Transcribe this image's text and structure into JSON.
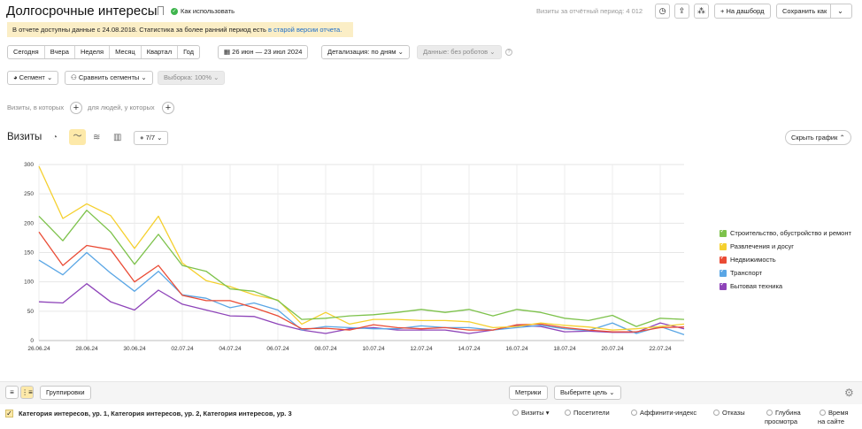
{
  "header": {
    "title": "Долгосрочные интересы",
    "howto_label": "Как использовать",
    "visits_period": "Визиты за отчётный период: 4 012",
    "to_dashboard": "На дашборд",
    "save_as": "Сохранить как"
  },
  "notice": {
    "text": "В отчете доступны данные с 24.08.2018. Статистика за более ранний период есть ",
    "link": "в старой версии отчета."
  },
  "periods": [
    "Сегодня",
    "Вчера",
    "Неделя",
    "Месяц",
    "Квартал",
    "Год"
  ],
  "date_range": "26 июн — 23 июл 2024",
  "detail_label": "Детализация: по дням",
  "data_label": "Данные: без роботов",
  "segment_label": "Сегмент",
  "compare_label": "Сравнить сегменты",
  "sample_label": "Выборка: 100%",
  "filter": {
    "visits_which": "Визиты, в которых",
    "people_which": "для людей, у которых"
  },
  "chart_header": {
    "title": "Визиты",
    "series_count": "7/7",
    "hide_chart": "Скрыть график"
  },
  "colors": {
    "construction": "#7dc24b",
    "entertainment": "#f5d02e",
    "realty": "#ea4b35",
    "transport": "#5aa6e5",
    "appliances": "#8e44b9"
  },
  "chart_data": {
    "type": "line",
    "x_tick_labels": [
      "26.06.24",
      "28.06.24",
      "30.06.24",
      "02.07.24",
      "04.07.24",
      "06.07.24",
      "08.07.24",
      "10.07.24",
      "12.07.24",
      "14.07.24",
      "16.07.24",
      "18.07.24",
      "20.07.24",
      "22.07.24"
    ],
    "weekend_ticks": [
      "30.06.24",
      "06.07.24",
      "14.07.24",
      "20.07.24"
    ],
    "x": [
      "26.06.24",
      "27.06.24",
      "28.06.24",
      "29.06.24",
      "30.06.24",
      "01.07.24",
      "02.07.24",
      "03.07.24",
      "04.07.24",
      "05.07.24",
      "06.07.24",
      "07.07.24",
      "08.07.24",
      "09.07.24",
      "10.07.24",
      "11.07.24",
      "12.07.24",
      "13.07.24",
      "14.07.24",
      "15.07.24",
      "16.07.24",
      "17.07.24",
      "18.07.24",
      "19.07.24",
      "20.07.24",
      "21.07.24",
      "22.07.24",
      "23.07.24"
    ],
    "y_ticks": [
      0,
      50,
      100,
      150,
      200,
      250,
      300
    ],
    "ylim": [
      0,
      300
    ],
    "grid": true,
    "legend": "right",
    "series": [
      {
        "name": "Строительство, обустройство и ремонт",
        "color_key": "construction",
        "values": [
          212,
          170,
          222,
          185,
          130,
          181,
          128,
          118,
          88,
          84,
          68,
          36,
          38,
          42,
          44,
          48,
          53,
          48,
          53,
          42,
          53,
          48,
          38,
          34,
          43,
          24,
          38,
          36
        ]
      },
      {
        "name": "Развлечения и досуг",
        "color_key": "entertainment",
        "values": [
          297,
          208,
          233,
          213,
          157,
          212,
          132,
          102,
          92,
          78,
          69,
          28,
          48,
          28,
          36,
          36,
          34,
          34,
          32,
          22,
          24,
          30,
          26,
          23,
          18,
          20,
          24,
          28
        ]
      },
      {
        "name": "Недвижимость",
        "color_key": "realty",
        "values": [
          185,
          128,
          162,
          155,
          100,
          128,
          77,
          68,
          68,
          56,
          42,
          20,
          21,
          18,
          27,
          22,
          20,
          22,
          18,
          18,
          27,
          28,
          22,
          18,
          15,
          15,
          22,
          23
        ]
      },
      {
        "name": "Транспорт",
        "color_key": "transport",
        "values": [
          137,
          112,
          150,
          115,
          84,
          118,
          78,
          72,
          56,
          64,
          52,
          18,
          24,
          22,
          20,
          20,
          25,
          22,
          22,
          18,
          22,
          26,
          20,
          17,
          30,
          12,
          24,
          10
        ]
      },
      {
        "name": "Бытовая техника",
        "color_key": "appliances",
        "values": [
          66,
          64,
          97,
          66,
          52,
          86,
          62,
          52,
          42,
          41,
          28,
          18,
          12,
          20,
          22,
          18,
          18,
          18,
          12,
          18,
          26,
          24,
          15,
          16,
          14,
          14,
          30,
          20
        ]
      }
    ]
  },
  "bottom": {
    "groupings": "Группировки",
    "metrics": "Метрики",
    "choose_goal": "Выберите цель",
    "dimension": "Категория интересов, ур. 1, Категория интересов, ур. 2, Категория интересов, ур. 3",
    "columns": {
      "visits": "Визиты",
      "visitors": "Посетители",
      "affinity": "Аффинити-индекс",
      "bounces": "Отказы",
      "depth1": "Глубина",
      "depth2": "просмотра",
      "time1": "Время",
      "time2": "на сайте"
    }
  }
}
